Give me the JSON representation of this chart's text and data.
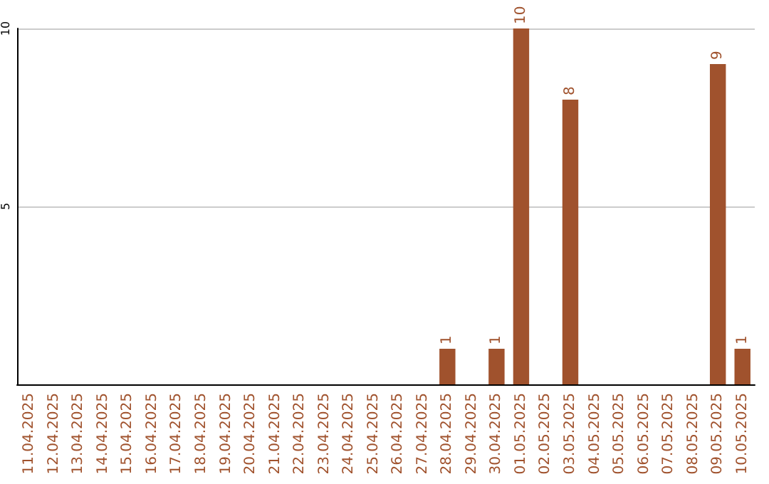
{
  "chart_data": {
    "type": "bar",
    "categories": [
      "11.04.2025",
      "12.04.2025",
      "13.04.2025",
      "14.04.2025",
      "15.04.2025",
      "16.04.2025",
      "17.04.2025",
      "18.04.2025",
      "19.04.2025",
      "20.04.2025",
      "21.04.2025",
      "22.04.2025",
      "23.04.2025",
      "24.04.2025",
      "25.04.2025",
      "26.04.2025",
      "27.04.2025",
      "28.04.2025",
      "29.04.2025",
      "30.04.2025",
      "01.05.2025",
      "02.05.2025",
      "03.05.2025",
      "04.05.2025",
      "05.05.2025",
      "06.05.2025",
      "07.05.2025",
      "08.05.2025",
      "09.05.2025",
      "10.05.2025"
    ],
    "values": [
      0,
      0,
      0,
      0,
      0,
      0,
      0,
      0,
      0,
      0,
      0,
      0,
      0,
      0,
      0,
      0,
      0,
      1,
      0,
      1,
      10,
      0,
      8,
      0,
      0,
      0,
      0,
      0,
      9,
      1
    ],
    "value_labels": [
      null,
      null,
      null,
      null,
      null,
      null,
      null,
      null,
      null,
      null,
      null,
      null,
      null,
      null,
      null,
      null,
      null,
      "1",
      null,
      "1",
      "10",
      null,
      "8",
      null,
      null,
      null,
      null,
      null,
      "9",
      "1"
    ],
    "color": "#a0522d",
    "ylim": [
      0,
      10
    ],
    "yticks": [
      5,
      10
    ],
    "grid": "y"
  }
}
